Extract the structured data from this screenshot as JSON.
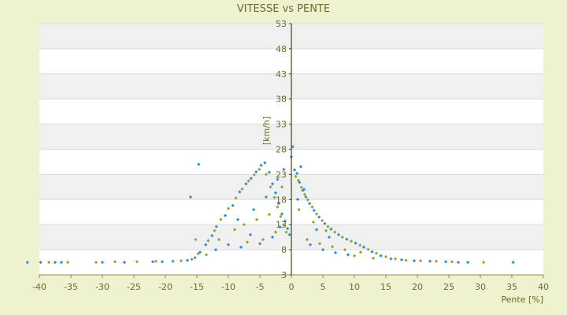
{
  "chart_data": {
    "type": "scatter",
    "title": "VITESSE vs PENTE",
    "xlabel": "Pente [%]",
    "ylabel": "[km/h]",
    "xlim": [
      -40,
      40
    ],
    "ylim": [
      3,
      53
    ],
    "x_ticks": [
      "-40",
      "-35",
      "-30",
      "-25",
      "-20",
      "-15",
      "-10",
      "-5",
      "0",
      "5",
      "10",
      "15",
      "20",
      "25",
      "30",
      "35",
      "40"
    ],
    "y_ticks": [
      "3",
      "8",
      "13",
      "18",
      "23",
      "28",
      "33",
      "38",
      "43",
      "48",
      "53"
    ],
    "grid": true,
    "legend": "none",
    "series": [
      {
        "color": "#2f8fd6",
        "points": [
          [
            -41.9,
            5.5
          ],
          [
            -39.8,
            5.5
          ],
          [
            -37.5,
            5.5
          ],
          [
            -36.5,
            5.5
          ],
          [
            -30.0,
            5.5
          ],
          [
            -26.5,
            5.5
          ],
          [
            -22.0,
            5.6
          ],
          [
            -20.5,
            5.6
          ],
          [
            -18.8,
            5.7
          ],
          [
            -16.5,
            5.9
          ],
          [
            -15.3,
            6.4
          ],
          [
            -14.5,
            7.5
          ],
          [
            -14.7,
            25.0
          ],
          [
            -13.6,
            9.0
          ],
          [
            -12.6,
            10.8
          ],
          [
            -11.9,
            12.6
          ],
          [
            -10.5,
            14.8
          ],
          [
            -9.3,
            16.8
          ],
          [
            -8.2,
            19.5
          ],
          [
            -7.2,
            21.1
          ],
          [
            -6.4,
            22.2
          ],
          [
            -5.6,
            23.5
          ],
          [
            -4.8,
            24.8
          ],
          [
            -4.2,
            25.3
          ],
          [
            -3.5,
            23.4
          ],
          [
            -3.0,
            21.1
          ],
          [
            -2.5,
            19.3
          ],
          [
            -2.0,
            17.2
          ],
          [
            -1.5,
            15.1
          ],
          [
            -1.0,
            13.7
          ],
          [
            -0.6,
            12.2
          ],
          [
            -0.3,
            11.0
          ],
          [
            0.0,
            26.5
          ],
          [
            0.2,
            28.5
          ],
          [
            0.5,
            23.9
          ],
          [
            0.9,
            23.2
          ],
          [
            1.3,
            21.4
          ],
          [
            1.8,
            19.8
          ],
          [
            2.3,
            18.5
          ],
          [
            2.9,
            17.2
          ],
          [
            3.6,
            15.8
          ],
          [
            4.4,
            14.5
          ],
          [
            5.3,
            13.2
          ],
          [
            6.3,
            12.1
          ],
          [
            7.5,
            11.0
          ],
          [
            8.8,
            10.1
          ],
          [
            10.2,
            9.3
          ],
          [
            11.5,
            8.5
          ],
          [
            12.8,
            7.6
          ],
          [
            14.2,
            6.8
          ],
          [
            15.8,
            6.2
          ],
          [
            17.5,
            6.0
          ],
          [
            19.5,
            5.8
          ],
          [
            22.0,
            5.7
          ],
          [
            24.5,
            5.6
          ],
          [
            26.5,
            5.5
          ],
          [
            28.0,
            5.5
          ],
          [
            35.2,
            5.5
          ],
          [
            -8.0,
            8.5
          ],
          [
            -5.0,
            9.2
          ],
          [
            -3.0,
            10.5
          ],
          [
            -1.8,
            12.5
          ],
          [
            -6.5,
            11.0
          ],
          [
            -10.0,
            9.0
          ],
          [
            3.0,
            9.0
          ],
          [
            5.0,
            8.0
          ],
          [
            7.0,
            7.4
          ],
          [
            9.0,
            7.0
          ],
          [
            2.0,
            20.0
          ],
          [
            1.0,
            18.0
          ],
          [
            -2.2,
            22.0
          ],
          [
            -4.0,
            18.5
          ],
          [
            -6.0,
            16.0
          ],
          [
            -8.5,
            14.0
          ],
          [
            4.0,
            12.0
          ],
          [
            6.0,
            10.5
          ],
          [
            -1.2,
            24.0
          ],
          [
            1.5,
            24.5
          ],
          [
            -12.0,
            8.0
          ],
          [
            -16.0,
            18.5
          ]
        ]
      },
      {
        "color": "#9aa32c",
        "points": [
          [
            -38.5,
            5.5
          ],
          [
            -35.5,
            5.5
          ],
          [
            -31.0,
            5.5
          ],
          [
            -28.0,
            5.6
          ],
          [
            -24.5,
            5.6
          ],
          [
            -21.5,
            5.7
          ],
          [
            -17.5,
            5.8
          ],
          [
            -15.8,
            6.1
          ],
          [
            -14.8,
            7.2
          ],
          [
            -15.2,
            10.0
          ],
          [
            -13.2,
            9.8
          ],
          [
            -12.2,
            11.8
          ],
          [
            -11.2,
            14.0
          ],
          [
            -10.0,
            16.2
          ],
          [
            -8.8,
            18.3
          ],
          [
            -7.8,
            20.1
          ],
          [
            -6.8,
            21.7
          ],
          [
            -5.9,
            22.9
          ],
          [
            -5.1,
            24.0
          ],
          [
            -4.0,
            23.0
          ],
          [
            -3.3,
            20.5
          ],
          [
            -2.7,
            18.4
          ],
          [
            -2.2,
            16.5
          ],
          [
            -1.7,
            14.6
          ],
          [
            -1.2,
            12.9
          ],
          [
            -0.8,
            11.5
          ],
          [
            0.7,
            22.6
          ],
          [
            1.1,
            21.8
          ],
          [
            1.6,
            20.4
          ],
          [
            2.1,
            19.0
          ],
          [
            2.6,
            17.9
          ],
          [
            3.3,
            16.5
          ],
          [
            4.0,
            15.1
          ],
          [
            4.9,
            13.8
          ],
          [
            5.8,
            12.6
          ],
          [
            6.9,
            11.5
          ],
          [
            8.1,
            10.5
          ],
          [
            9.5,
            9.7
          ],
          [
            10.9,
            8.9
          ],
          [
            12.2,
            8.1
          ],
          [
            13.5,
            7.3
          ],
          [
            15.0,
            6.6
          ],
          [
            16.5,
            6.2
          ],
          [
            18.2,
            5.9
          ],
          [
            20.5,
            5.8
          ],
          [
            23.0,
            5.7
          ],
          [
            25.5,
            5.6
          ],
          [
            30.5,
            5.5
          ],
          [
            -7.0,
            9.5
          ],
          [
            -4.5,
            10.0
          ],
          [
            -2.5,
            11.5
          ],
          [
            -9.0,
            12.0
          ],
          [
            -11.5,
            10.0
          ],
          [
            2.5,
            10.0
          ],
          [
            4.5,
            9.2
          ],
          [
            6.5,
            8.6
          ],
          [
            8.5,
            8.0
          ],
          [
            11.0,
            7.5
          ],
          [
            -3.5,
            15.0
          ],
          [
            -5.5,
            14.0
          ],
          [
            -7.5,
            13.0
          ],
          [
            3.5,
            13.5
          ],
          [
            5.5,
            11.8
          ],
          [
            -1.5,
            20.5
          ],
          [
            1.2,
            16.0
          ],
          [
            -13.5,
            7.0
          ],
          [
            10.0,
            6.8
          ],
          [
            13.0,
            6.3
          ]
        ]
      }
    ]
  }
}
